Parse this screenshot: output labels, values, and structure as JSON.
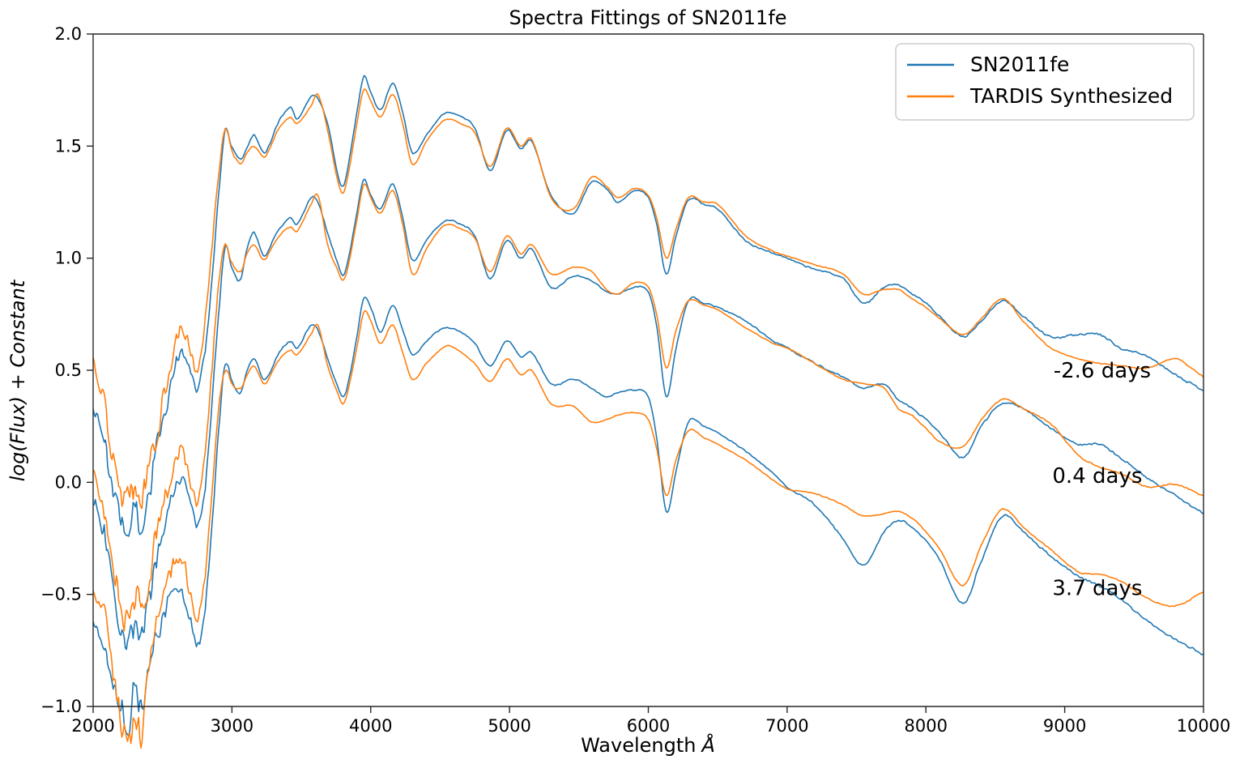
{
  "title": "Spectra Fittings of SN2011fe",
  "x_axis": {
    "label_text": "Wavelength",
    "label_unit": "Å",
    "ticks": [
      2000,
      3000,
      4000,
      5000,
      6000,
      7000,
      8000,
      9000,
      10000
    ],
    "tick_labels": [
      "2000",
      "3000",
      "4000",
      "5000",
      "6000",
      "7000",
      "8000",
      "9000",
      "10000"
    ],
    "range": [
      2000,
      10000
    ]
  },
  "y_axis": {
    "label": "log(Flux) + Constant",
    "ticks": [
      2.0,
      1.5,
      1.0,
      0.5,
      0.0,
      -0.5,
      -1.0
    ],
    "tick_labels": [
      "2.0",
      "1.5",
      "1.0",
      "0.5",
      "0.0",
      "−0.5",
      "−1.0"
    ],
    "range": [
      -1.0,
      2.0
    ]
  },
  "legend": {
    "items": [
      {
        "label": "SN2011fe",
        "color": "#1f77b4"
      },
      {
        "label": "TARDIS Synthesized",
        "color": "#ff7f0e"
      }
    ]
  },
  "annotations": [
    {
      "text": "-2.6 days",
      "lambda": 9270,
      "flux": 0.5
    },
    {
      "text": "0.4 days",
      "lambda": 9235,
      "flux": 0.03
    },
    {
      "text": "3.7 days",
      "lambda": 9235,
      "flux": -0.47
    }
  ],
  "chart_data": {
    "type": "line",
    "title": "Spectra Fittings of SN2011fe",
    "xlabel": "Wavelength Å",
    "ylabel": "log(Flux) + Constant",
    "xlim": [
      2000,
      10000
    ],
    "ylim": [
      -1.0,
      2.0
    ],
    "grid": false,
    "legend_position": "upper right",
    "colors": {
      "blue": "#1f77b4",
      "orange": "#ff7f0e"
    },
    "lambda_grid": [
      2000,
      2050,
      2100,
      2150,
      2200,
      2250,
      2300,
      2350,
      2400,
      2450,
      2500,
      2550,
      2600,
      2650,
      2700,
      2750,
      2800,
      2850,
      2900,
      2950,
      3000,
      3060,
      3110,
      3160,
      3230,
      3280,
      3330,
      3420,
      3470,
      3570,
      3620,
      3690,
      3760,
      3800,
      3840,
      3900,
      3950,
      4000,
      4070,
      4160,
      4230,
      4300,
      4400,
      4500,
      4560,
      4650,
      4750,
      4860,
      4980,
      5080,
      5160,
      5300,
      5460,
      5590,
      5700,
      5780,
      5900,
      6000,
      6060,
      6130,
      6200,
      6290,
      6400,
      6500,
      6700,
      6900,
      7000,
      7200,
      7400,
      7550,
      7700,
      7800,
      7900,
      8000,
      8100,
      8270,
      8400,
      8550,
      8700,
      8900,
      9100,
      9250,
      9400,
      9600,
      9800,
      10000
    ],
    "series": [
      {
        "name": "SN2011fe",
        "epoch": "-2.6 days",
        "color_key": "blue",
        "seed": 11,
        "noise_scale": [
          1.0,
          0.8
        ],
        "values": [
          0.36,
          0.28,
          0.12,
          -0.05,
          -0.18,
          -0.23,
          -0.14,
          -0.18,
          -0.06,
          0.12,
          0.26,
          0.4,
          0.52,
          0.58,
          0.5,
          0.42,
          0.55,
          0.85,
          1.25,
          1.57,
          1.5,
          1.44,
          1.5,
          1.55,
          1.47,
          1.52,
          1.6,
          1.67,
          1.62,
          1.72,
          1.71,
          1.6,
          1.38,
          1.32,
          1.42,
          1.65,
          1.81,
          1.74,
          1.66,
          1.78,
          1.65,
          1.47,
          1.55,
          1.63,
          1.65,
          1.63,
          1.58,
          1.39,
          1.57,
          1.49,
          1.52,
          1.28,
          1.2,
          1.34,
          1.31,
          1.25,
          1.3,
          1.27,
          1.15,
          0.93,
          1.1,
          1.26,
          1.24,
          1.22,
          1.08,
          1.02,
          1.0,
          0.95,
          0.91,
          0.8,
          0.87,
          0.88,
          0.84,
          0.8,
          0.74,
          0.65,
          0.72,
          0.81,
          0.74,
          0.65,
          0.66,
          0.66,
          0.6,
          0.56,
          0.48,
          0.41
        ]
      },
      {
        "name": "TARDIS Synthesized",
        "epoch": "-2.6 days",
        "color_key": "orange",
        "seed": 21,
        "noise_scale": [
          1.15,
          0.45
        ],
        "values": [
          0.52,
          0.45,
          0.3,
          0.05,
          -0.05,
          -0.08,
          0.0,
          -0.05,
          0.05,
          0.2,
          0.35,
          0.5,
          0.65,
          0.69,
          0.58,
          0.5,
          0.68,
          1.0,
          1.35,
          1.57,
          1.48,
          1.42,
          1.47,
          1.5,
          1.45,
          1.5,
          1.57,
          1.63,
          1.6,
          1.68,
          1.73,
          1.57,
          1.35,
          1.29,
          1.38,
          1.6,
          1.75,
          1.7,
          1.63,
          1.73,
          1.6,
          1.42,
          1.52,
          1.6,
          1.62,
          1.6,
          1.56,
          1.41,
          1.58,
          1.5,
          1.53,
          1.27,
          1.22,
          1.36,
          1.32,
          1.27,
          1.31,
          1.28,
          1.18,
          1.0,
          1.13,
          1.27,
          1.25,
          1.24,
          1.1,
          1.03,
          1.01,
          0.97,
          0.93,
          0.84,
          0.86,
          0.86,
          0.82,
          0.78,
          0.73,
          0.66,
          0.73,
          0.82,
          0.72,
          0.6,
          0.55,
          0.53,
          0.52,
          0.51,
          0.55,
          0.47
        ]
      },
      {
        "name": "SN2011fe",
        "epoch": "0.4 days",
        "color_key": "blue",
        "seed": 12,
        "noise_scale": [
          1.0,
          0.8
        ],
        "values": [
          -0.07,
          -0.15,
          -0.3,
          -0.48,
          -0.65,
          -0.76,
          -0.64,
          -0.7,
          -0.54,
          -0.35,
          -0.22,
          -0.1,
          -0.02,
          0.01,
          -0.1,
          -0.18,
          -0.05,
          0.3,
          0.72,
          1.04,
          0.96,
          0.9,
          1.05,
          1.11,
          1.01,
          1.06,
          1.12,
          1.18,
          1.15,
          1.27,
          1.25,
          1.11,
          0.98,
          0.92,
          1.0,
          1.2,
          1.35,
          1.28,
          1.22,
          1.33,
          1.18,
          0.99,
          1.08,
          1.15,
          1.17,
          1.15,
          1.1,
          0.91,
          1.08,
          1.0,
          1.04,
          0.87,
          0.92,
          0.9,
          0.85,
          0.84,
          0.87,
          0.85,
          0.7,
          0.38,
          0.6,
          0.81,
          0.8,
          0.78,
          0.72,
          0.63,
          0.6,
          0.53,
          0.47,
          0.42,
          0.44,
          0.37,
          0.33,
          0.28,
          0.22,
          0.11,
          0.25,
          0.35,
          0.33,
          0.24,
          0.17,
          0.17,
          0.11,
          0.02,
          -0.06,
          -0.14
        ]
      },
      {
        "name": "TARDIS Synthesized",
        "epoch": "0.4 days",
        "color_key": "orange",
        "seed": 22,
        "noise_scale": [
          1.15,
          0.45
        ],
        "values": [
          0.05,
          -0.02,
          -0.18,
          -0.38,
          -0.55,
          -0.63,
          -0.52,
          -0.58,
          -0.44,
          -0.25,
          -0.12,
          0.0,
          0.1,
          0.13,
          0.0,
          -0.08,
          0.1,
          0.45,
          0.85,
          1.06,
          0.98,
          0.94,
          1.02,
          1.06,
          0.99,
          1.04,
          1.09,
          1.14,
          1.12,
          1.24,
          1.28,
          1.06,
          0.95,
          0.9,
          0.97,
          1.17,
          1.33,
          1.27,
          1.2,
          1.3,
          1.15,
          0.93,
          1.04,
          1.13,
          1.15,
          1.13,
          1.09,
          0.94,
          1.1,
          1.02,
          1.06,
          0.93,
          0.96,
          0.94,
          0.86,
          0.84,
          0.89,
          0.87,
          0.75,
          0.51,
          0.68,
          0.81,
          0.79,
          0.77,
          0.69,
          0.62,
          0.6,
          0.53,
          0.46,
          0.44,
          0.42,
          0.33,
          0.3,
          0.24,
          0.18,
          0.16,
          0.28,
          0.37,
          0.33,
          0.26,
          0.12,
          0.07,
          0.04,
          -0.02,
          -0.01,
          -0.06
        ]
      },
      {
        "name": "SN2011fe",
        "epoch": "3.7 days",
        "color_key": "blue",
        "seed": 13,
        "noise_scale": [
          1.0,
          0.8
        ],
        "values": [
          -0.6,
          -0.68,
          -0.8,
          -0.92,
          -1.0,
          -1.05,
          -0.94,
          -1.0,
          -0.84,
          -0.7,
          -0.6,
          -0.52,
          -0.48,
          -0.5,
          -0.62,
          -0.72,
          -0.6,
          -0.25,
          0.2,
          0.52,
          0.45,
          0.4,
          0.5,
          0.55,
          0.46,
          0.5,
          0.57,
          0.63,
          0.6,
          0.7,
          0.68,
          0.55,
          0.43,
          0.38,
          0.45,
          0.65,
          0.82,
          0.78,
          0.67,
          0.79,
          0.68,
          0.57,
          0.63,
          0.68,
          0.69,
          0.67,
          0.62,
          0.52,
          0.63,
          0.56,
          0.58,
          0.44,
          0.46,
          0.42,
          0.38,
          0.4,
          0.41,
          0.38,
          0.2,
          -0.13,
          0.05,
          0.27,
          0.25,
          0.22,
          0.14,
          0.04,
          -0.02,
          -0.1,
          -0.25,
          -0.37,
          -0.22,
          -0.17,
          -0.2,
          -0.26,
          -0.35,
          -0.54,
          -0.35,
          -0.15,
          -0.22,
          -0.33,
          -0.42,
          -0.46,
          -0.52,
          -0.62,
          -0.7,
          -0.77
        ]
      },
      {
        "name": "TARDIS Synthesized",
        "epoch": "3.7 days",
        "color_key": "orange",
        "seed": 23,
        "noise_scale": [
          1.15,
          0.45
        ],
        "values": [
          -0.48,
          -0.55,
          -0.68,
          -0.85,
          -1.05,
          -1.22,
          -1.0,
          -1.1,
          -0.8,
          -0.6,
          -0.48,
          -0.4,
          -0.35,
          -0.37,
          -0.5,
          -0.6,
          -0.45,
          -0.1,
          0.3,
          0.5,
          0.44,
          0.42,
          0.48,
          0.52,
          0.44,
          0.48,
          0.54,
          0.59,
          0.57,
          0.66,
          0.7,
          0.52,
          0.4,
          0.35,
          0.42,
          0.6,
          0.76,
          0.72,
          0.62,
          0.7,
          0.58,
          0.46,
          0.53,
          0.59,
          0.61,
          0.58,
          0.53,
          0.45,
          0.55,
          0.48,
          0.5,
          0.35,
          0.34,
          0.27,
          0.28,
          0.3,
          0.31,
          0.28,
          0.15,
          -0.06,
          0.1,
          0.23,
          0.2,
          0.17,
          0.1,
          0.01,
          -0.03,
          -0.05,
          -0.1,
          -0.15,
          -0.14,
          -0.13,
          -0.16,
          -0.22,
          -0.3,
          -0.46,
          -0.28,
          -0.12,
          -0.2,
          -0.3,
          -0.4,
          -0.41,
          -0.44,
          -0.52,
          -0.55,
          -0.49
        ]
      }
    ],
    "noise_profile": [
      [
        2000,
        0.045
      ],
      [
        2120,
        0.075
      ],
      [
        2280,
        0.095
      ],
      [
        2420,
        0.075
      ],
      [
        2560,
        0.05
      ],
      [
        2700,
        0.035
      ],
      [
        2850,
        0.02
      ],
      [
        3000,
        0.01
      ],
      [
        3300,
        0.007
      ],
      [
        4200,
        0.005
      ],
      [
        6000,
        0.004
      ],
      [
        7500,
        0.006
      ],
      [
        9000,
        0.007
      ],
      [
        10000,
        0.008
      ]
    ]
  }
}
